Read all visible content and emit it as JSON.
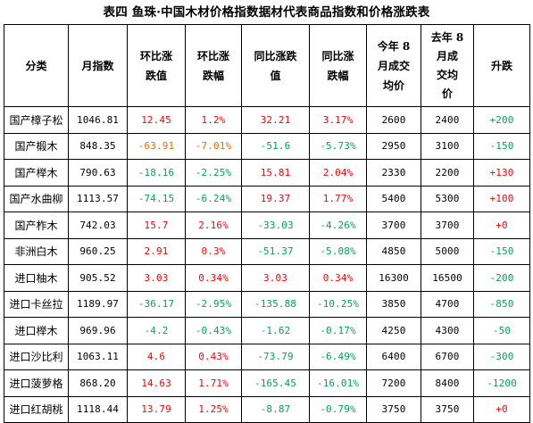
{
  "title": "表四  鱼珠·中国木材价格指数据材代表商品指数和价格涨跌表",
  "colors": {
    "up": "#ff0000",
    "down": "#00a651",
    "highlight": "#e46c0a",
    "text": "#000000",
    "border": "#000000"
  },
  "table": {
    "headers": [
      {
        "lines": [
          "分类"
        ]
      },
      {
        "lines": [
          "月指数"
        ]
      },
      {
        "lines": [
          "环比涨",
          "跌值"
        ]
      },
      {
        "lines": [
          "环比涨",
          "跌幅"
        ]
      },
      {
        "lines": [
          "同比涨跌",
          "值"
        ]
      },
      {
        "lines": [
          "同比涨",
          "跌幅"
        ]
      },
      {
        "lines": [
          "今年 8",
          "月成交",
          "均价"
        ]
      },
      {
        "lines": [
          "去年 8",
          "月成",
          "交均",
          "价"
        ]
      },
      {
        "lines": [
          "升跌"
        ]
      }
    ],
    "rows": [
      {
        "name": "国产樟子松",
        "index": "1046.81",
        "mom_val": "12.45",
        "mom_pct": "1.2%",
        "yoy_val": "32.21",
        "yoy_pct": "3.17%",
        "price_this": "2600",
        "price_last": "2400",
        "change": "+200",
        "c": [
          "red",
          "red",
          "red",
          "red",
          "green"
        ]
      },
      {
        "name": "国产椴木",
        "index": "848.35",
        "mom_val": "-63.91",
        "mom_pct": "-7.01%",
        "yoy_val": "-51.6",
        "yoy_pct": "-5.73%",
        "price_this": "2950",
        "price_last": "3100",
        "change": "-150",
        "c": [
          "orange",
          "orange",
          "green",
          "green",
          "green"
        ]
      },
      {
        "name": "国产榉木",
        "index": "790.63",
        "mom_val": "-18.16",
        "mom_pct": "-2.25%",
        "yoy_val": "15.81",
        "yoy_pct": "2.04%",
        "price_this": "2330",
        "price_last": "2200",
        "change": "+130",
        "c": [
          "green",
          "green",
          "red",
          "red",
          "red"
        ]
      },
      {
        "name": "国产水曲柳",
        "index": "1113.57",
        "mom_val": "-74.15",
        "mom_pct": "-6.24%",
        "yoy_val": "19.37",
        "yoy_pct": "1.77%",
        "price_this": "5400",
        "price_last": "5300",
        "change": "+100",
        "c": [
          "green",
          "green",
          "red",
          "red",
          "red"
        ]
      },
      {
        "name": "国产柞木",
        "index": "742.03",
        "mom_val": "15.7",
        "mom_pct": "2.16%",
        "yoy_val": "-33.03",
        "yoy_pct": "-4.26%",
        "price_this": "3700",
        "price_last": "3700",
        "change": "+0",
        "c": [
          "red",
          "red",
          "green",
          "green",
          "red"
        ]
      },
      {
        "name": "非洲白木",
        "index": "960.25",
        "mom_val": "2.91",
        "mom_pct": "0.3%",
        "yoy_val": "-51.37",
        "yoy_pct": "-5.08%",
        "price_this": "4850",
        "price_last": "5000",
        "change": "-150",
        "c": [
          "red",
          "red",
          "green",
          "green",
          "green"
        ]
      },
      {
        "name": "进口柚木",
        "index": "905.52",
        "mom_val": "3.03",
        "mom_pct": "0.34%",
        "yoy_val": "3.03",
        "yoy_pct": "0.34%",
        "price_this": "16300",
        "price_last": "16500",
        "change": "-200",
        "c": [
          "red",
          "red",
          "red",
          "red",
          "green"
        ]
      },
      {
        "name": "进口卡丝拉",
        "index": "1189.97",
        "mom_val": "-36.17",
        "mom_pct": "-2.95%",
        "yoy_val": "-135.88",
        "yoy_pct": "-10.25%",
        "price_this": "3850",
        "price_last": "4700",
        "change": "-850",
        "c": [
          "green",
          "green",
          "green",
          "green",
          "green"
        ]
      },
      {
        "name": "进口榉木",
        "index": "969.96",
        "mom_val": "-4.2",
        "mom_pct": "-0.43%",
        "yoy_val": "-1.62",
        "yoy_pct": "-0.17%",
        "price_this": "4250",
        "price_last": "4300",
        "change": "-50",
        "c": [
          "green",
          "green",
          "green",
          "green",
          "green"
        ]
      },
      {
        "name": "进口沙比利",
        "index": "1063.11",
        "mom_val": "4.6",
        "mom_pct": "0.43%",
        "yoy_val": "-73.79",
        "yoy_pct": "-6.49%",
        "price_this": "6400",
        "price_last": "6700",
        "change": "-300",
        "c": [
          "red",
          "red",
          "green",
          "green",
          "green"
        ]
      },
      {
        "name": "进口菠萝格",
        "index": "868.20",
        "mom_val": "14.63",
        "mom_pct": "1.71%",
        "yoy_val": "-165.45",
        "yoy_pct": "-16.01%",
        "price_this": "7200",
        "price_last": "8400",
        "change": "-1200",
        "c": [
          "red",
          "red",
          "green",
          "green",
          "green"
        ]
      },
      {
        "name": "进口红胡桃",
        "index": "1118.44",
        "mom_val": "13.79",
        "mom_pct": "1.25%",
        "yoy_val": "-8.87",
        "yoy_pct": "-0.79%",
        "price_this": "3750",
        "price_last": "3750",
        "change": "+0",
        "c": [
          "red",
          "red",
          "green",
          "green",
          "red"
        ]
      }
    ]
  }
}
